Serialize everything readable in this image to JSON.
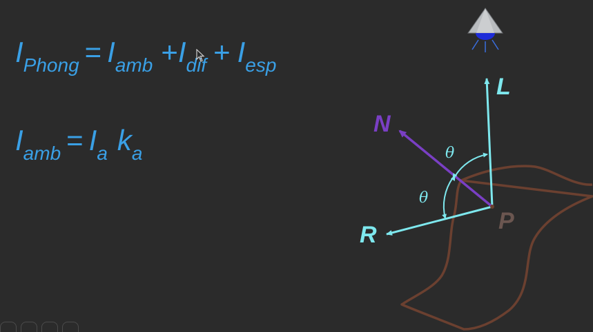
{
  "equation_phong": {
    "lhs": "I",
    "lhs_sub": "Phong",
    "eq": "=",
    "t1": "I",
    "t1_sub": "amb",
    "plus1": "+",
    "t2": "I",
    "t2_sub": "dif",
    "plus2": "+",
    "t3": "I",
    "t3_sub": "esp"
  },
  "equation_ambient": {
    "lhs": "I",
    "lhs_sub": "amb",
    "eq": "=",
    "f1": "I",
    "f1_sub": "a",
    "f2": "k",
    "f2_sub": "a"
  },
  "diagram": {
    "label_L": "L",
    "label_N": "N",
    "label_R": "R",
    "label_P": "P",
    "theta1": "θ",
    "theta2": "θ",
    "light_icon": "light-source-icon"
  },
  "colors": {
    "text_blue": "#3aa0e6",
    "vector_cyan": "#7ee8ee",
    "normal_purple": "#7a3fc4",
    "surface_brown": "#6b4030",
    "point_label": "#6b5650"
  }
}
